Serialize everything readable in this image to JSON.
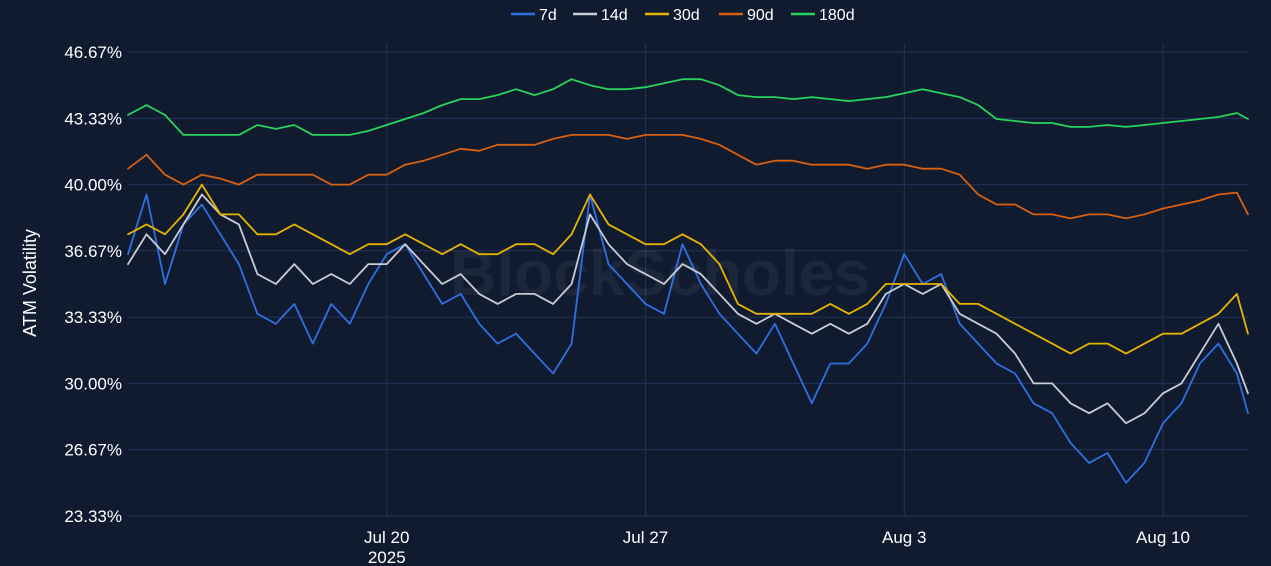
{
  "chart_data": {
    "type": "line",
    "ylabel": "ATM Volatility",
    "xlabel": "",
    "y_ticks": [
      "46.67%",
      "43.33%",
      "40.00%",
      "36.67%",
      "33.33%",
      "30.00%",
      "26.67%",
      "23.33%"
    ],
    "y_tick_values": [
      46.67,
      43.33,
      40.0,
      36.67,
      33.33,
      30.0,
      26.67,
      23.33
    ],
    "ylim": [
      23.33,
      46.67
    ],
    "x_ticks": [
      {
        "label": "Jul 20",
        "sub": "2025",
        "day": 20
      },
      {
        "label": "Jul 27",
        "sub": "",
        "day": 27
      },
      {
        "label": "Aug 3",
        "sub": "",
        "day": 34
      },
      {
        "label": "Aug 10",
        "sub": "",
        "day": 41
      }
    ],
    "x_unit": "day of July 2025",
    "xlim": [
      13,
      43.3
    ],
    "grid": true,
    "legend_position": "top-center",
    "watermark": "BlockScholes",
    "series": [
      {
        "name": "7d",
        "color": "#2f6fe0",
        "x": [
          13,
          13.5,
          14,
          14.5,
          15,
          15.5,
          16,
          16.5,
          17,
          17.5,
          18,
          18.5,
          19,
          19.5,
          20,
          20.5,
          21,
          21.5,
          22,
          22.5,
          23,
          23.5,
          24,
          24.5,
          25,
          25.5,
          26,
          26.5,
          27,
          27.5,
          28,
          28.5,
          29,
          29.5,
          30,
          30.5,
          31,
          31.5,
          32,
          32.5,
          33,
          33.5,
          34,
          34.5,
          35,
          35.5,
          36,
          36.5,
          37,
          37.5,
          38,
          38.5,
          39,
          39.5,
          40,
          40.5,
          41,
          41.5,
          42,
          42.5,
          43,
          43.3
        ],
        "values": [
          36.5,
          39.5,
          35,
          38,
          39,
          37.5,
          36,
          33.5,
          33,
          34,
          32,
          34,
          33,
          35,
          36.5,
          37,
          35.5,
          34,
          34.5,
          33,
          32,
          32.5,
          31.5,
          30.5,
          32,
          39.5,
          36,
          35,
          34,
          33.5,
          37,
          35,
          33.5,
          32.5,
          31.5,
          33,
          31,
          29,
          31,
          31,
          32,
          34,
          36.5,
          35,
          35.5,
          33,
          32,
          31,
          30.5,
          29,
          28.5,
          27,
          26,
          26.5,
          25,
          26,
          28,
          29,
          31,
          32,
          30.5,
          28.5
        ]
      },
      {
        "name": "14d",
        "color": "#c8ccd4",
        "x": [
          13,
          13.5,
          14,
          14.5,
          15,
          15.5,
          16,
          16.5,
          17,
          17.5,
          18,
          18.5,
          19,
          19.5,
          20,
          20.5,
          21,
          21.5,
          22,
          22.5,
          23,
          23.5,
          24,
          24.5,
          25,
          25.5,
          26,
          26.5,
          27,
          27.5,
          28,
          28.5,
          29,
          29.5,
          30,
          30.5,
          31,
          31.5,
          32,
          32.5,
          33,
          33.5,
          34,
          34.5,
          35,
          35.5,
          36,
          36.5,
          37,
          37.5,
          38,
          38.5,
          39,
          39.5,
          40,
          40.5,
          41,
          41.5,
          42,
          42.5,
          43,
          43.3
        ],
        "values": [
          36,
          37.5,
          36.5,
          38,
          39.5,
          38.5,
          38,
          35.5,
          35,
          36,
          35,
          35.5,
          35,
          36,
          36,
          37,
          36,
          35,
          35.5,
          34.5,
          34,
          34.5,
          34.5,
          34,
          35,
          38.5,
          37,
          36,
          35.5,
          35,
          36,
          35.5,
          34.5,
          33.5,
          33,
          33.5,
          33,
          32.5,
          33,
          32.5,
          33,
          34.5,
          35,
          34.5,
          35,
          33.5,
          33,
          32.5,
          31.5,
          30,
          30,
          29,
          28.5,
          29,
          28,
          28.5,
          29.5,
          30,
          31.5,
          33,
          31,
          29.5
        ]
      },
      {
        "name": "30d",
        "color": "#e6b400",
        "x": [
          13,
          13.5,
          14,
          14.5,
          15,
          15.5,
          16,
          16.5,
          17,
          17.5,
          18,
          18.5,
          19,
          19.5,
          20,
          20.5,
          21,
          21.5,
          22,
          22.5,
          23,
          23.5,
          24,
          24.5,
          25,
          25.5,
          26,
          26.5,
          27,
          27.5,
          28,
          28.5,
          29,
          29.5,
          30,
          30.5,
          31,
          31.5,
          32,
          32.5,
          33,
          33.5,
          34,
          34.5,
          35,
          35.5,
          36,
          36.5,
          37,
          37.5,
          38,
          38.5,
          39,
          39.5,
          40,
          40.5,
          41,
          41.5,
          42,
          42.5,
          43,
          43.3
        ],
        "values": [
          37.5,
          38,
          37.5,
          38.5,
          40,
          38.5,
          38.5,
          37.5,
          37.5,
          38,
          37.5,
          37,
          36.5,
          37,
          37,
          37.5,
          37,
          36.5,
          37,
          36.5,
          36.5,
          37,
          37,
          36.5,
          37.5,
          39.5,
          38,
          37.5,
          37,
          37,
          37.5,
          37,
          36,
          34,
          33.5,
          33.5,
          33.5,
          33.5,
          34,
          33.5,
          34,
          35,
          35,
          35,
          35,
          34,
          34,
          33.5,
          33,
          32.5,
          32,
          31.5,
          32,
          32,
          31.5,
          32,
          32.5,
          32.5,
          33,
          33.5,
          34.5,
          32.5
        ]
      },
      {
        "name": "90d",
        "color": "#d86010",
        "x": [
          13,
          13.5,
          14,
          14.5,
          15,
          15.5,
          16,
          16.5,
          17,
          17.5,
          18,
          18.5,
          19,
          19.5,
          20,
          20.5,
          21,
          21.5,
          22,
          22.5,
          23,
          23.5,
          24,
          24.5,
          25,
          25.5,
          26,
          26.5,
          27,
          27.5,
          28,
          28.5,
          29,
          29.5,
          30,
          30.5,
          31,
          31.5,
          32,
          32.5,
          33,
          33.5,
          34,
          34.5,
          35,
          35.5,
          36,
          36.5,
          37,
          37.5,
          38,
          38.5,
          39,
          39.5,
          40,
          40.5,
          41,
          41.5,
          42,
          42.5,
          43,
          43.3
        ],
        "values": [
          40.8,
          41.5,
          40.5,
          40,
          40.5,
          40.3,
          40,
          40.5,
          40.5,
          40.5,
          40.5,
          40,
          40,
          40.5,
          40.5,
          41,
          41.2,
          41.5,
          41.8,
          41.7,
          42,
          42,
          42,
          42.3,
          42.5,
          42.5,
          42.5,
          42.3,
          42.5,
          42.5,
          42.5,
          42.3,
          42,
          41.5,
          41,
          41.2,
          41.2,
          41,
          41,
          41,
          40.8,
          41,
          41,
          40.8,
          40.8,
          40.5,
          39.5,
          39,
          39,
          38.5,
          38.5,
          38.3,
          38.5,
          38.5,
          38.3,
          38.5,
          38.8,
          39,
          39.2,
          39.5,
          39.6,
          38.5
        ]
      },
      {
        "name": "180d",
        "color": "#27d35a",
        "x": [
          13,
          13.5,
          14,
          14.5,
          15,
          15.5,
          16,
          16.5,
          17,
          17.5,
          18,
          18.5,
          19,
          19.5,
          20,
          20.5,
          21,
          21.5,
          22,
          22.5,
          23,
          23.5,
          24,
          24.5,
          25,
          25.5,
          26,
          26.5,
          27,
          27.5,
          28,
          28.5,
          29,
          29.5,
          30,
          30.5,
          31,
          31.5,
          32,
          32.5,
          33,
          33.5,
          34,
          34.5,
          35,
          35.5,
          36,
          36.5,
          37,
          37.5,
          38,
          38.5,
          39,
          39.5,
          40,
          40.5,
          41,
          41.5,
          42,
          42.5,
          43,
          43.3
        ],
        "values": [
          43.5,
          44,
          43.5,
          42.5,
          42.5,
          42.5,
          42.5,
          43,
          42.8,
          43,
          42.5,
          42.5,
          42.5,
          42.7,
          43,
          43.3,
          43.6,
          44,
          44.3,
          44.3,
          44.5,
          44.8,
          44.5,
          44.8,
          45.3,
          45,
          44.8,
          44.8,
          44.9,
          45.1,
          45.3,
          45.3,
          45,
          44.5,
          44.4,
          44.4,
          44.3,
          44.4,
          44.3,
          44.2,
          44.3,
          44.4,
          44.6,
          44.8,
          44.6,
          44.4,
          44,
          43.3,
          43.2,
          43.1,
          43.1,
          42.9,
          42.9,
          43,
          42.9,
          43,
          43.1,
          43.2,
          43.3,
          43.4,
          43.6,
          43.3
        ]
      }
    ]
  }
}
